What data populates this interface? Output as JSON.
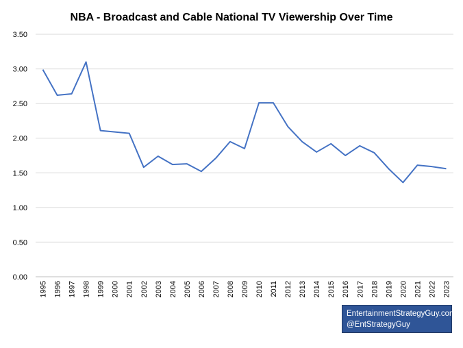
{
  "chart_data": {
    "type": "line",
    "title": "NBA - Broadcast and Cable National TV Viewership Over Time",
    "xlabel": "",
    "ylabel": "",
    "categories": [
      "1995",
      "1996",
      "1997",
      "1998",
      "1999",
      "2000",
      "2001",
      "2002",
      "2003",
      "2004",
      "2005",
      "2006",
      "2007",
      "2008",
      "2009",
      "2010",
      "2011",
      "2012",
      "2013",
      "2014",
      "2015",
      "2016",
      "2017",
      "2018",
      "2019",
      "2020",
      "2021",
      "2022",
      "2023"
    ],
    "series": [
      {
        "values": [
          2.99,
          2.62,
          2.64,
          3.1,
          2.11,
          2.09,
          2.07,
          1.58,
          1.74,
          1.62,
          1.63,
          1.52,
          1.71,
          1.95,
          1.85,
          2.51,
          2.51,
          2.17,
          1.95,
          1.8,
          1.92,
          1.75,
          1.89,
          1.79,
          1.56,
          1.36,
          1.61,
          1.59,
          1.56
        ],
        "color": "#4472c4"
      }
    ],
    "ylim": [
      0,
      3.5
    ],
    "yticks": [
      "0.00",
      "0.50",
      "1.00",
      "1.50",
      "2.00",
      "2.50",
      "3.00",
      "3.50"
    ],
    "grid": true,
    "legend": "none"
  },
  "watermark": {
    "line1": "EntertainmentStrategyGuy.com",
    "line2": "@EntStrategyGuy",
    "background": "#2f5597"
  }
}
